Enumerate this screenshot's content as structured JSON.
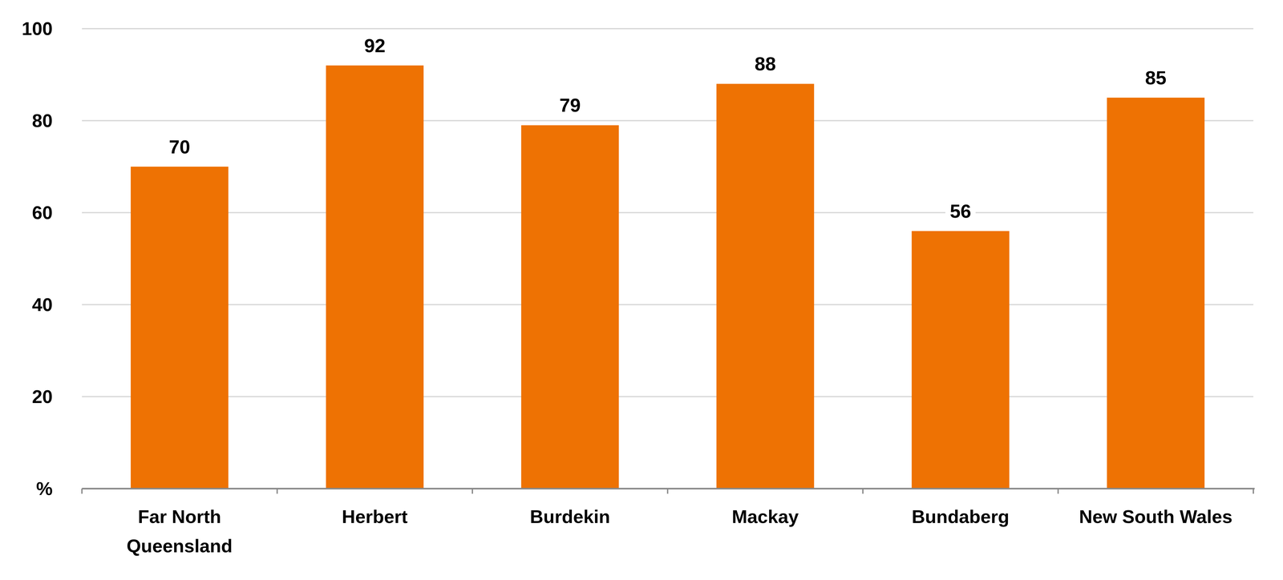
{
  "chart_data": {
    "type": "bar",
    "categories": [
      "Far North Queensland",
      "Herbert",
      "Burdekin",
      "Mackay",
      "Bundaberg",
      "New South Wales"
    ],
    "values": [
      70,
      92,
      79,
      88,
      56,
      85
    ],
    "color": "#ee7203",
    "ylim": [
      0,
      100
    ],
    "yticks": [
      {
        "value": 0,
        "label": "%"
      },
      20,
      40,
      60,
      80,
      100
    ],
    "grid": true,
    "data_labels": true
  }
}
